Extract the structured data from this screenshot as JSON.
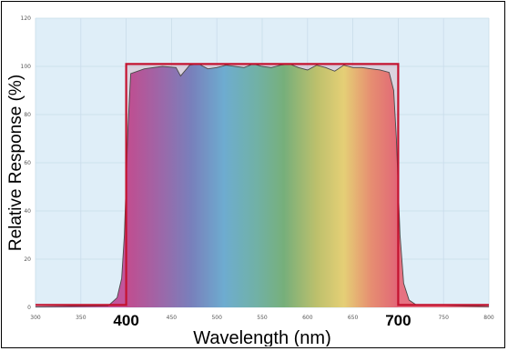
{
  "chart_data": {
    "type": "line",
    "xlabel": "Wavelength (nm)",
    "ylabel": "Relative Response (%)",
    "xlim": [
      300,
      800
    ],
    "ylim": [
      0,
      120
    ],
    "x_ticks": [
      300,
      350,
      400,
      450,
      500,
      550,
      600,
      650,
      700,
      750,
      800
    ],
    "x_tick_labels": [
      "300",
      "350",
      "400",
      "450",
      "500",
      "550",
      "600",
      "650",
      "700",
      "750",
      "800"
    ],
    "y_ticks": [
      0,
      20,
      40,
      60,
      80,
      100,
      120
    ],
    "y_tick_labels": [
      "0",
      "20",
      "40",
      "60",
      "80",
      "100",
      "120"
    ],
    "highlight_ticks": [
      400,
      700
    ],
    "grid": true,
    "colors": {
      "plot_background": "#dfeef8",
      "grid": "#c9dcea",
      "ideal_band": "#c4122f",
      "measured_curve": "#4a4a4a"
    },
    "series": [
      {
        "style": "step",
        "x": [
          300,
          400,
          400,
          700,
          700,
          800
        ],
        "y": [
          1,
          1,
          101,
          101,
          1,
          1
        ]
      },
      {
        "style": "smooth",
        "x": [
          300,
          380,
          390,
          395,
          398,
          402,
          405,
          420,
          440,
          455,
          460,
          470,
          480,
          490,
          500,
          510,
          520,
          530,
          540,
          550,
          560,
          570,
          580,
          590,
          600,
          610,
          620,
          630,
          640,
          650,
          660,
          670,
          680,
          690,
          695,
          698,
          702,
          706,
          712,
          720,
          800
        ],
        "y": [
          0.2,
          0.6,
          4,
          12,
          30,
          75,
          97,
          99,
          100,
          99.5,
          96,
          100.5,
          101,
          99,
          99.5,
          100.5,
          100,
          99.5,
          101,
          100,
          99.5,
          100.5,
          101,
          99.5,
          98.5,
          100.5,
          99.5,
          98,
          100.5,
          99.5,
          99.5,
          99,
          98.5,
          97.5,
          90,
          70,
          30,
          10,
          3,
          1,
          0.3
        ]
      }
    ]
  }
}
